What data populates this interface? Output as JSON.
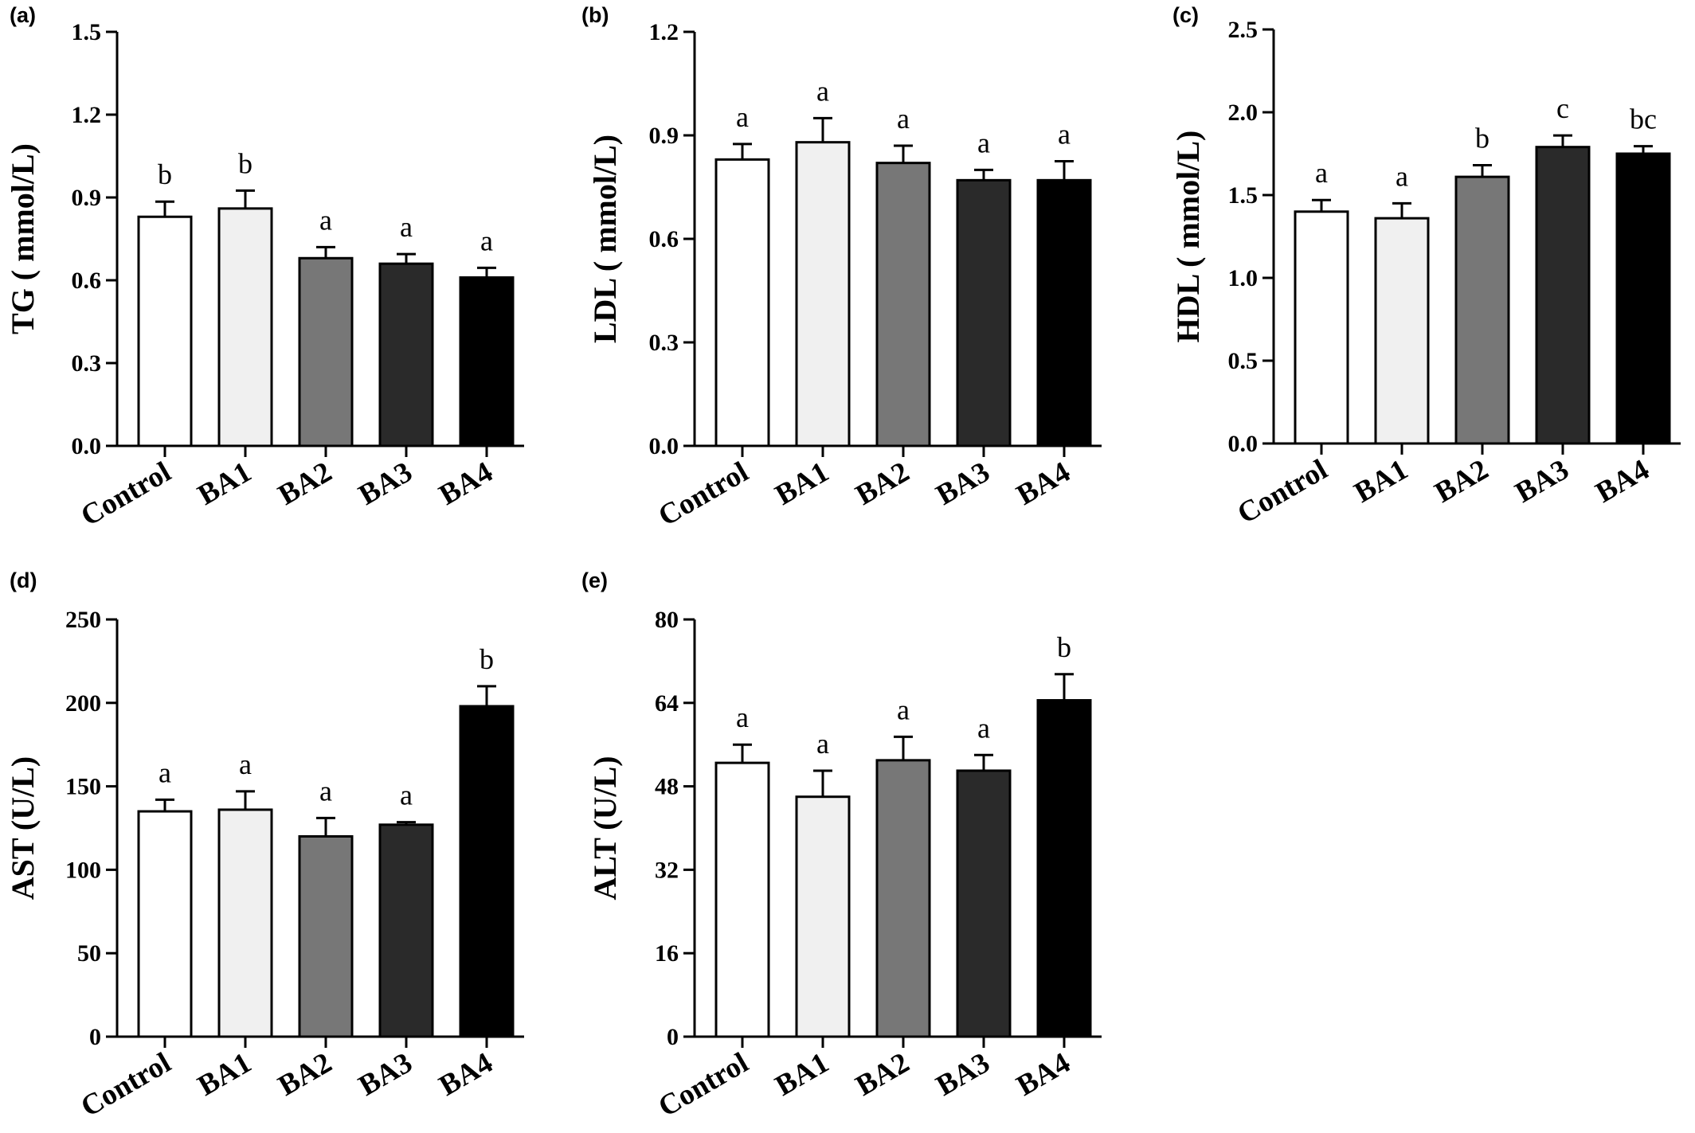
{
  "colors": {
    "axis": "#000000",
    "bar_outline": "#000000",
    "fills": [
      "#ffffff",
      "#f0f0f0",
      "#777777",
      "#2a2a2a",
      "#000000"
    ]
  },
  "chart_data": [
    {
      "panel": "(a)",
      "type": "bar",
      "ylabel": "TG ( mmol/L)",
      "ylim": [
        0,
        1.5
      ],
      "yticks": [
        "0.0",
        "0.3",
        "0.6",
        "0.9",
        "1.2",
        "1.5"
      ],
      "categories": [
        "Control",
        "BA1",
        "BA2",
        "BA3",
        "BA4"
      ],
      "values": [
        0.83,
        0.86,
        0.68,
        0.66,
        0.61
      ],
      "errors": [
        0.055,
        0.065,
        0.04,
        0.035,
        0.035
      ],
      "significance": [
        "b",
        "b",
        "a",
        "a",
        "a"
      ]
    },
    {
      "panel": "(b)",
      "type": "bar",
      "ylabel": "LDL ( mmol/L)",
      "ylim": [
        0,
        1.2
      ],
      "yticks": [
        "0.0",
        "0.3",
        "0.6",
        "0.9",
        "1.2"
      ],
      "categories": [
        "Control",
        "BA1",
        "BA2",
        "BA3",
        "BA4"
      ],
      "values": [
        0.83,
        0.88,
        0.82,
        0.77,
        0.77
      ],
      "errors": [
        0.045,
        0.07,
        0.05,
        0.03,
        0.055
      ],
      "significance": [
        "a",
        "a",
        "a",
        "a",
        "a"
      ]
    },
    {
      "panel": "(c)",
      "type": "bar",
      "ylabel": "HDL ( mmol/L)",
      "ylim": [
        0,
        2.5
      ],
      "yticks": [
        "0.0",
        "0.5",
        "1.0",
        "1.5",
        "2.0",
        "2.5"
      ],
      "categories": [
        "Control",
        "BA1",
        "BA2",
        "BA3",
        "BA4"
      ],
      "values": [
        1.4,
        1.36,
        1.61,
        1.79,
        1.75
      ],
      "errors": [
        0.07,
        0.09,
        0.07,
        0.07,
        0.045
      ],
      "significance": [
        "a",
        "a",
        "b",
        "c",
        "bc"
      ]
    },
    {
      "panel": "(d)",
      "type": "bar",
      "ylabel": "AST (U/L)",
      "ylim": [
        0,
        250
      ],
      "yticks": [
        "0",
        "50",
        "100",
        "150",
        "200",
        "250"
      ],
      "categories": [
        "Control",
        "BA1",
        "BA2",
        "BA3",
        "BA4"
      ],
      "values": [
        135,
        136,
        120,
        127,
        198
      ],
      "errors": [
        7,
        11,
        11,
        1.5,
        12
      ],
      "significance": [
        "a",
        "a",
        "a",
        "a",
        "b"
      ]
    },
    {
      "panel": "(e)",
      "type": "bar",
      "ylabel": "ALT (U/L)",
      "ylim": [
        0,
        80
      ],
      "yticks": [
        "0",
        "16",
        "32",
        "48",
        "64",
        "80"
      ],
      "categories": [
        "Control",
        "BA1",
        "BA2",
        "BA3",
        "BA4"
      ],
      "values": [
        52.5,
        46,
        53,
        51,
        64.5
      ],
      "errors": [
        3.5,
        5,
        4.5,
        3,
        5
      ],
      "significance": [
        "a",
        "a",
        "a",
        "a",
        "b"
      ]
    }
  ]
}
